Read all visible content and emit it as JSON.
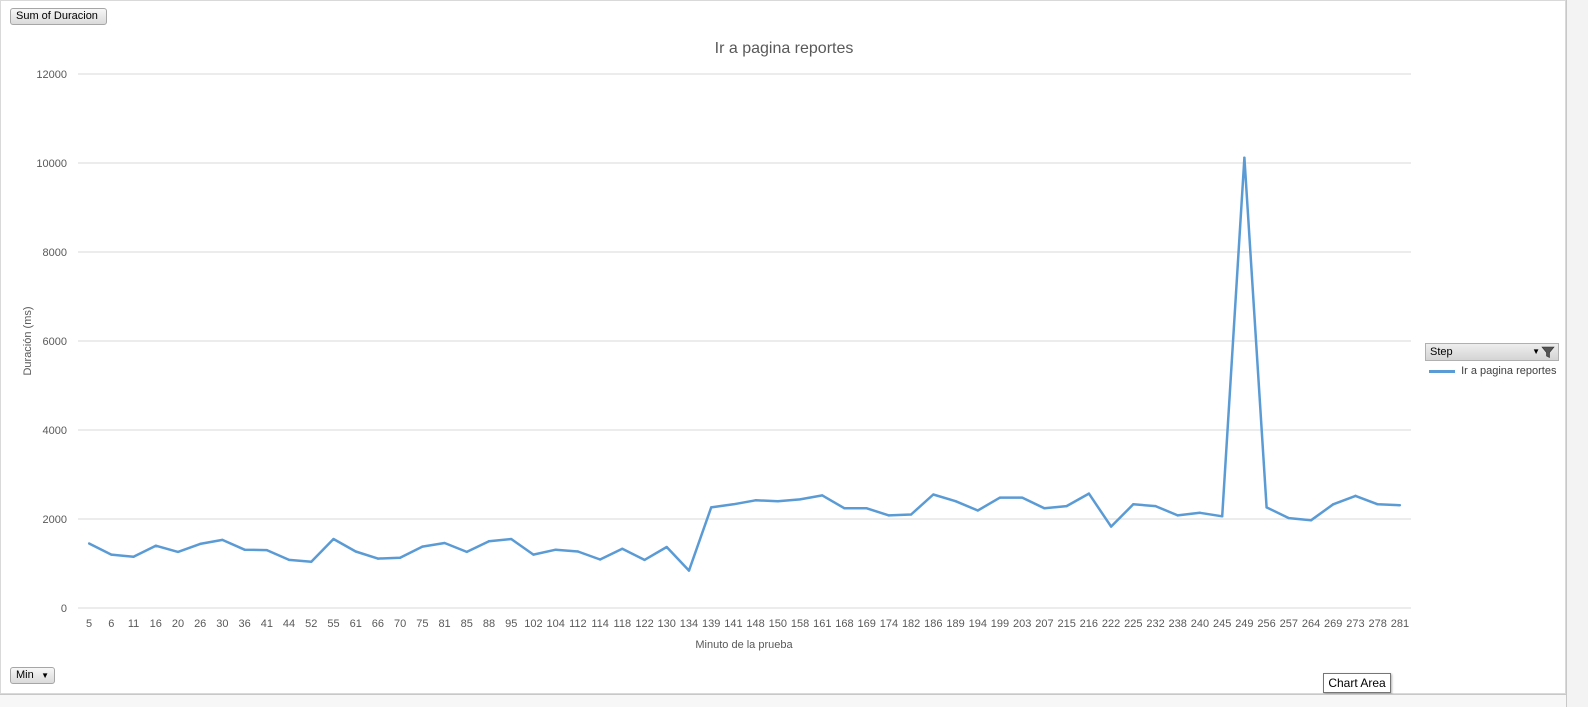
{
  "field_buttons": {
    "values_field": "Sum of Duracion",
    "axis_field": "Min"
  },
  "legend": {
    "header": "Step",
    "entries": [
      "Ir a pagina reportes"
    ]
  },
  "tooltip": "Chart Area",
  "colors": {
    "series": "#5b9bd5",
    "grid": "#d9d9d9"
  },
  "chart_data": {
    "type": "line",
    "title": "Ir a pagina reportes",
    "xlabel": "Minuto de la prueba",
    "ylabel": "Duración (ms)",
    "ylim": [
      0,
      12000
    ],
    "yticks": [
      0,
      2000,
      4000,
      6000,
      8000,
      10000,
      12000
    ],
    "grid": true,
    "legend_position": "right",
    "categories": [
      "5",
      "6",
      "11",
      "16",
      "20",
      "26",
      "30",
      "36",
      "41",
      "44",
      "52",
      "55",
      "61",
      "66",
      "70",
      "75",
      "81",
      "85",
      "88",
      "95",
      "102",
      "104",
      "112",
      "114",
      "118",
      "122",
      "130",
      "134",
      "139",
      "141",
      "148",
      "150",
      "158",
      "161",
      "168",
      "169",
      "174",
      "182",
      "186",
      "189",
      "194",
      "199",
      "203",
      "207",
      "215",
      "216",
      "222",
      "225",
      "232",
      "238",
      "240",
      "245",
      "249",
      "256",
      "257",
      "264",
      "269",
      "273",
      "278",
      "281"
    ],
    "series": [
      {
        "name": "Ir a pagina reportes",
        "values": [
          1450,
          1200,
          1150,
          1400,
          1260,
          1440,
          1530,
          1310,
          1300,
          1080,
          1040,
          1550,
          1270,
          1110,
          1130,
          1380,
          1460,
          1260,
          1500,
          1550,
          1200,
          1310,
          1270,
          1090,
          1330,
          1080,
          1370,
          840,
          2260,
          2330,
          2420,
          2400,
          2440,
          2530,
          2240,
          2240,
          2080,
          2100,
          2550,
          2400,
          2190,
          2480,
          2480,
          2240,
          2290,
          2570,
          1830,
          2330,
          2290,
          2080,
          2140,
          2060,
          10120,
          2260,
          2020,
          1970,
          2330,
          2520,
          2330,
          2310
        ]
      }
    ]
  }
}
